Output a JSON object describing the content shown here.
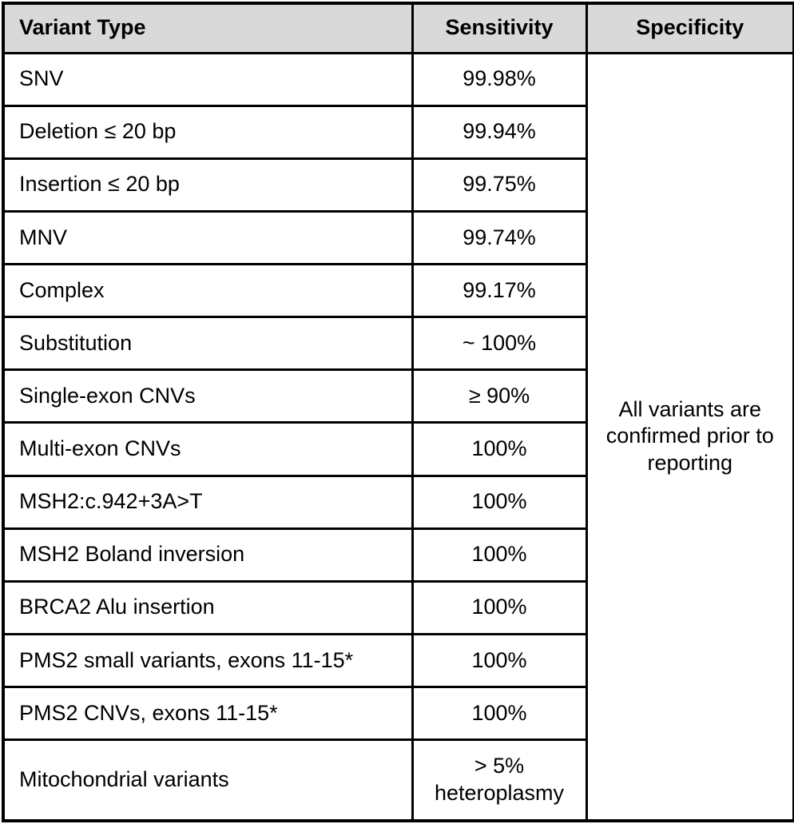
{
  "table": {
    "headers": {
      "variant_type": "Variant Type",
      "sensitivity": "Sensitivity",
      "specificity": "Specificity"
    },
    "rows": [
      {
        "variant": "SNV",
        "sensitivity": "99.98%"
      },
      {
        "variant": "Deletion ≤ 20 bp",
        "sensitivity": "99.94%"
      },
      {
        "variant": "Insertion ≤ 20 bp",
        "sensitivity": "99.75%"
      },
      {
        "variant": "MNV",
        "sensitivity": "99.74%"
      },
      {
        "variant": "Complex",
        "sensitivity": "99.17%"
      },
      {
        "variant": "Substitution",
        "sensitivity": "~ 100%"
      },
      {
        "variant": "Single-exon CNVs",
        "sensitivity": "≥ 90%"
      },
      {
        "variant": "Multi-exon CNVs",
        "sensitivity": "100%"
      },
      {
        "variant": "MSH2:c.942+3A>T",
        "sensitivity": "100%"
      },
      {
        "variant": "MSH2 Boland inversion",
        "sensitivity": "100%"
      },
      {
        "variant": "BRCA2 Alu insertion",
        "sensitivity": "100%"
      },
      {
        "variant": "PMS2 small variants, exons 11-15*",
        "sensitivity": "100%"
      },
      {
        "variant": "PMS2 CNVs, exons 11-15*",
        "sensitivity": "100%"
      },
      {
        "variant": "Mitochondrial variants",
        "sensitivity": "> 5% heteroplasmy"
      }
    ],
    "specificity_note": "All variants are confirmed prior to reporting"
  },
  "colors": {
    "header_bg": "#d9d9d9",
    "border": "#000000",
    "text": "#000000"
  }
}
